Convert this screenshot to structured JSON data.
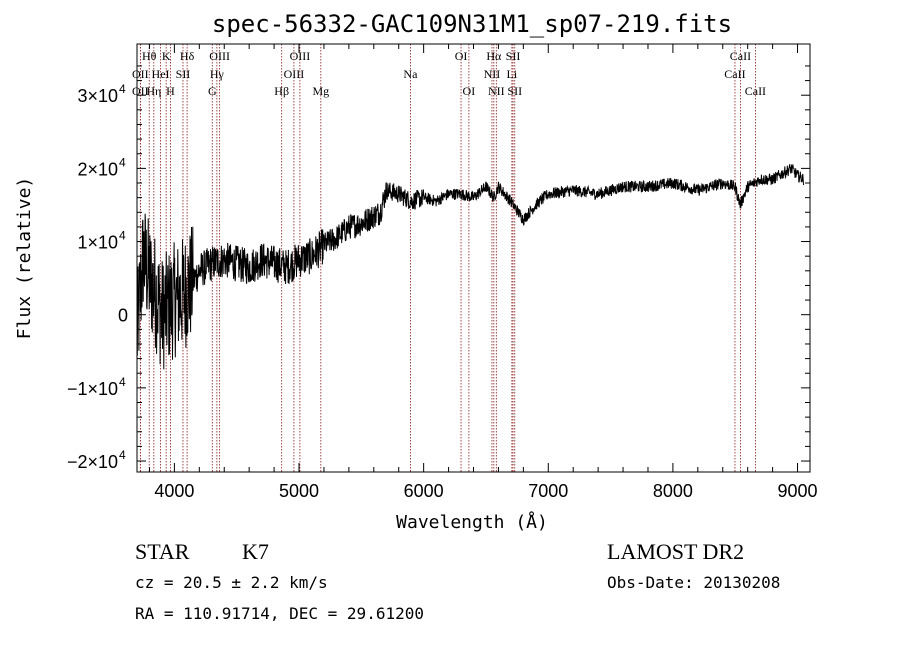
{
  "chart_data": {
    "type": "line",
    "title": "spec-56332-GAC109N31M1_sp07-219.fits",
    "xlabel": "Wavelength (Å)",
    "ylabel": "Flux (relative)",
    "xlim": [
      3700,
      9100
    ],
    "ylim": [
      -21500,
      37000
    ],
    "x_ticks": [
      {
        "value": 4000,
        "label": "4000"
      },
      {
        "value": 5000,
        "label": "5000"
      },
      {
        "value": 6000,
        "label": "6000"
      },
      {
        "value": 7000,
        "label": "7000"
      },
      {
        "value": 8000,
        "label": "8000"
      },
      {
        "value": 9000,
        "label": "9000"
      }
    ],
    "y_ticks": [
      {
        "value": -20000,
        "mant": "−2×10",
        "exp": "4"
      },
      {
        "value": -10000,
        "mant": "−1×10",
        "exp": "4"
      },
      {
        "value": 0,
        "mant": "0",
        "exp": ""
      },
      {
        "value": 10000,
        "mant": "1×10",
        "exp": "4"
      },
      {
        "value": 20000,
        "mant": "2×10",
        "exp": "4"
      },
      {
        "value": 30000,
        "mant": "3×10",
        "exp": "4"
      }
    ],
    "series_anchors": {
      "name": "spectrum",
      "x": [
        3700,
        3750,
        3800,
        3850,
        3900,
        3950,
        4000,
        4050,
        4100,
        4150,
        4200,
        4300,
        4400,
        4500,
        4600,
        4700,
        4800,
        4900,
        5000,
        5100,
        5200,
        5300,
        5400,
        5500,
        5600,
        5650,
        5700,
        5800,
        5850,
        5900,
        6000,
        6100,
        6200,
        6300,
        6400,
        6500,
        6563,
        6600,
        6700,
        6800,
        6900,
        7000,
        7200,
        7400,
        7600,
        7800,
        8000,
        8200,
        8400,
        8500,
        8540,
        8600,
        8700,
        8800,
        8900,
        8950,
        9000,
        9050
      ],
      "y": [
        -3000,
        8000,
        5000,
        3000,
        0,
        1000,
        2000,
        2500,
        3500,
        4500,
        6000,
        7000,
        7500,
        7000,
        6500,
        7500,
        7000,
        6500,
        7500,
        8000,
        9500,
        10500,
        12000,
        12500,
        13500,
        14000,
        17000,
        16500,
        16000,
        15500,
        16000,
        15500,
        16500,
        16500,
        16000,
        17500,
        16000,
        17500,
        15500,
        13000,
        15000,
        16500,
        17000,
        16500,
        17500,
        17500,
        18000,
        17000,
        18000,
        17500,
        15000,
        17500,
        18500,
        18500,
        19500,
        20000,
        19000,
        18500
      ]
    },
    "spectral_lines": [
      {
        "label": "OII",
        "wave": 3727,
        "row": 2
      },
      {
        "label": "OII",
        "wave": 3727,
        "row": 3
      },
      {
        "label": "Hθ",
        "wave": 3798,
        "row": 1
      },
      {
        "label": "Hη",
        "wave": 3835,
        "row": 3
      },
      {
        "label": "HeI",
        "wave": 3889,
        "row": 2
      },
      {
        "label": "K",
        "wave": 3934,
        "row": 1
      },
      {
        "label": "H",
        "wave": 3968,
        "row": 3
      },
      {
        "label": "SII",
        "wave": 4069,
        "row": 2
      },
      {
        "label": "Hδ",
        "wave": 4102,
        "row": 1
      },
      {
        "label": "G",
        "wave": 4304,
        "row": 3
      },
      {
        "label": "Hγ",
        "wave": 4341,
        "row": 2
      },
      {
        "label": "OIII",
        "wave": 4363,
        "row": 1
      },
      {
        "label": "Hβ",
        "wave": 4861,
        "row": 3
      },
      {
        "label": "OIII",
        "wave": 4959,
        "row": 2
      },
      {
        "label": "OIII",
        "wave": 5007,
        "row": 1
      },
      {
        "label": "Mg",
        "wave": 5175,
        "row": 3
      },
      {
        "label": "Na",
        "wave": 5894,
        "row": 2
      },
      {
        "label": "OI",
        "wave": 6300,
        "row": 1
      },
      {
        "label": "OI",
        "wave": 6363,
        "row": 3
      },
      {
        "label": "NII",
        "wave": 6548,
        "row": 2
      },
      {
        "label": "Hα",
        "wave": 6563,
        "row": 1
      },
      {
        "label": "NII",
        "wave": 6583,
        "row": 3
      },
      {
        "label": "Li",
        "wave": 6708,
        "row": 2
      },
      {
        "label": "SII",
        "wave": 6717,
        "row": 1
      },
      {
        "label": "SII",
        "wave": 6731,
        "row": 3
      },
      {
        "label": "CaII",
        "wave": 8498,
        "row": 2
      },
      {
        "label": "CaII",
        "wave": 8542,
        "row": 1
      },
      {
        "label": "CaII",
        "wave": 8662,
        "row": 3
      }
    ]
  },
  "info": {
    "obj_class": "STAR",
    "subclass": "K7",
    "survey": "LAMOST DR2",
    "cz": "cz = 20.5 ± 2.2 km/s",
    "obs_date": "Obs-Date: 20130208",
    "radec": "RA = 110.91714, DEC =  29.61200"
  },
  "colors": {
    "spectrum": "#000000",
    "line_marker": "#8b1a1a",
    "axis": "#000000"
  }
}
